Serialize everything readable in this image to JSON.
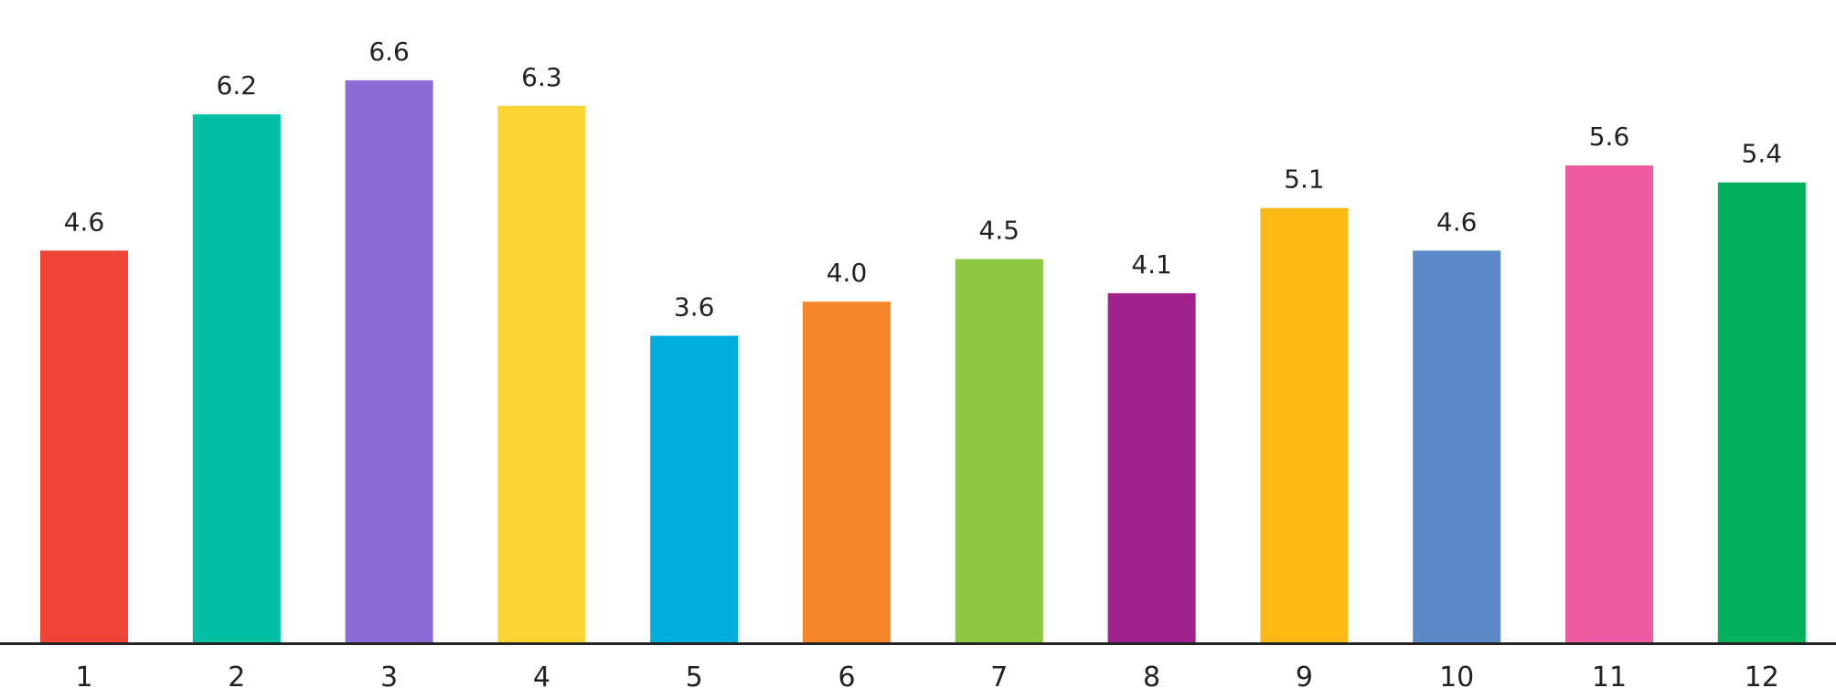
{
  "chart_data": {
    "type": "bar",
    "title": "",
    "xlabel": "",
    "ylabel": "",
    "categories": [
      "1",
      "2",
      "3",
      "4",
      "5",
      "6",
      "7",
      "8",
      "9",
      "10",
      "11",
      "12"
    ],
    "values": [
      4.6,
      6.2,
      6.6,
      6.3,
      3.6,
      4.0,
      4.5,
      4.1,
      5.1,
      4.6,
      5.6,
      5.4
    ],
    "labels": [
      "4.6",
      "6.2",
      "6.6",
      "6.3",
      "3.6",
      "4.0",
      "4.5",
      "4.1",
      "5.1",
      "4.6",
      "5.6",
      "5.4"
    ],
    "colors": [
      "#F04438",
      "#00BFA5",
      "#8B6CD6",
      "#FDD535",
      "#00AEDE",
      "#F58629",
      "#8DC63F",
      "#A0228C",
      "#FDB914",
      "#5C8AC8",
      "#EF5BA1",
      "#00B05A"
    ],
    "ylim": [
      0,
      7.2
    ],
    "grid": false,
    "axis_color": "#222222"
  }
}
